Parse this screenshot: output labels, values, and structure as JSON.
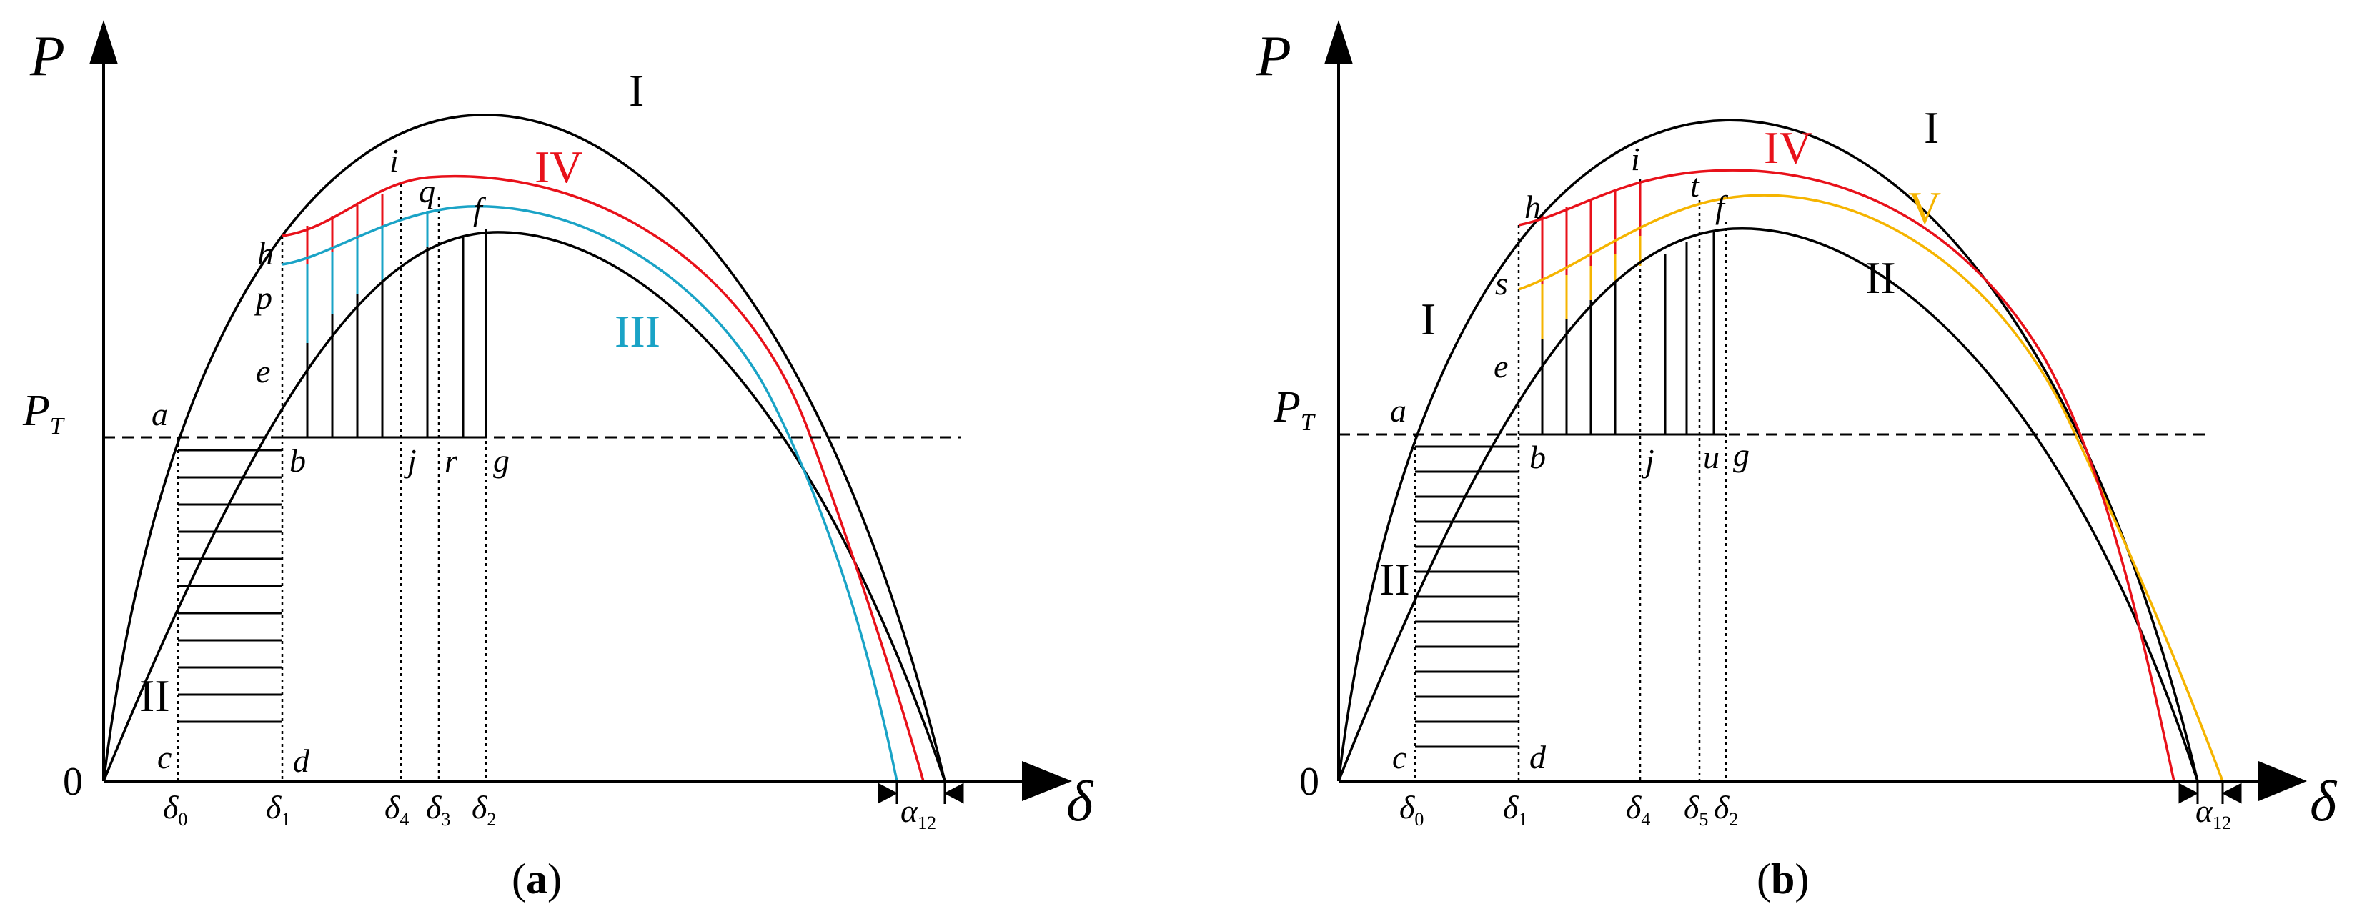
{
  "colors": {
    "curve_I": "#000000",
    "curve_II": "#000000",
    "curve_III": "#1aa3c6",
    "curve_IV": "#e8111a",
    "curve_V": "#f5b400",
    "axis": "#000000"
  },
  "panels": [
    {
      "id": "a",
      "caption_open": "(",
      "caption_letter": "a",
      "caption_close": ")",
      "axis_y_label": "P",
      "axis_x_label": "δ",
      "origin_label": "0",
      "pt_main": "P",
      "pt_sub": "T",
      "curve_labels": {
        "I": "I",
        "II": "II",
        "III": "III",
        "IV": "IV"
      },
      "points": {
        "a": "a",
        "b": "b",
        "c": "c",
        "d": "d",
        "e": "e",
        "f": "f",
        "g": "g",
        "h": "h",
        "i": "i",
        "j": "j",
        "p": "p",
        "q": "q",
        "r": "r"
      },
      "ticks": [
        {
          "main": "δ",
          "sub": "0"
        },
        {
          "main": "δ",
          "sub": "1"
        },
        {
          "main": "δ",
          "sub": "4"
        },
        {
          "main": "δ",
          "sub": "3"
        },
        {
          "main": "δ",
          "sub": "2"
        }
      ],
      "alpha": {
        "main": "α",
        "sub": "12"
      }
    },
    {
      "id": "b",
      "caption_open": "(",
      "caption_letter": "b",
      "caption_close": ")",
      "axis_y_label": "P",
      "axis_x_label": "δ",
      "origin_label": "0",
      "pt_main": "P",
      "pt_sub": "T",
      "curve_labels": {
        "I_top": "I",
        "I_left": "I",
        "II_left": "II",
        "II_right": "II",
        "IV": "IV",
        "V": "V"
      },
      "points": {
        "a": "a",
        "b": "b",
        "c": "c",
        "d": "d",
        "e": "e",
        "f": "f",
        "g": "g",
        "h": "h",
        "i": "i",
        "j": "j",
        "s": "s",
        "t": "t",
        "u": "u"
      },
      "ticks": [
        {
          "main": "δ",
          "sub": "0"
        },
        {
          "main": "δ",
          "sub": "1"
        },
        {
          "main": "δ",
          "sub": "4"
        },
        {
          "main": "δ",
          "sub": "5"
        },
        {
          "main": "δ",
          "sub": "2"
        }
      ],
      "alpha": {
        "main": "α",
        "sub": "12"
      }
    }
  ]
}
